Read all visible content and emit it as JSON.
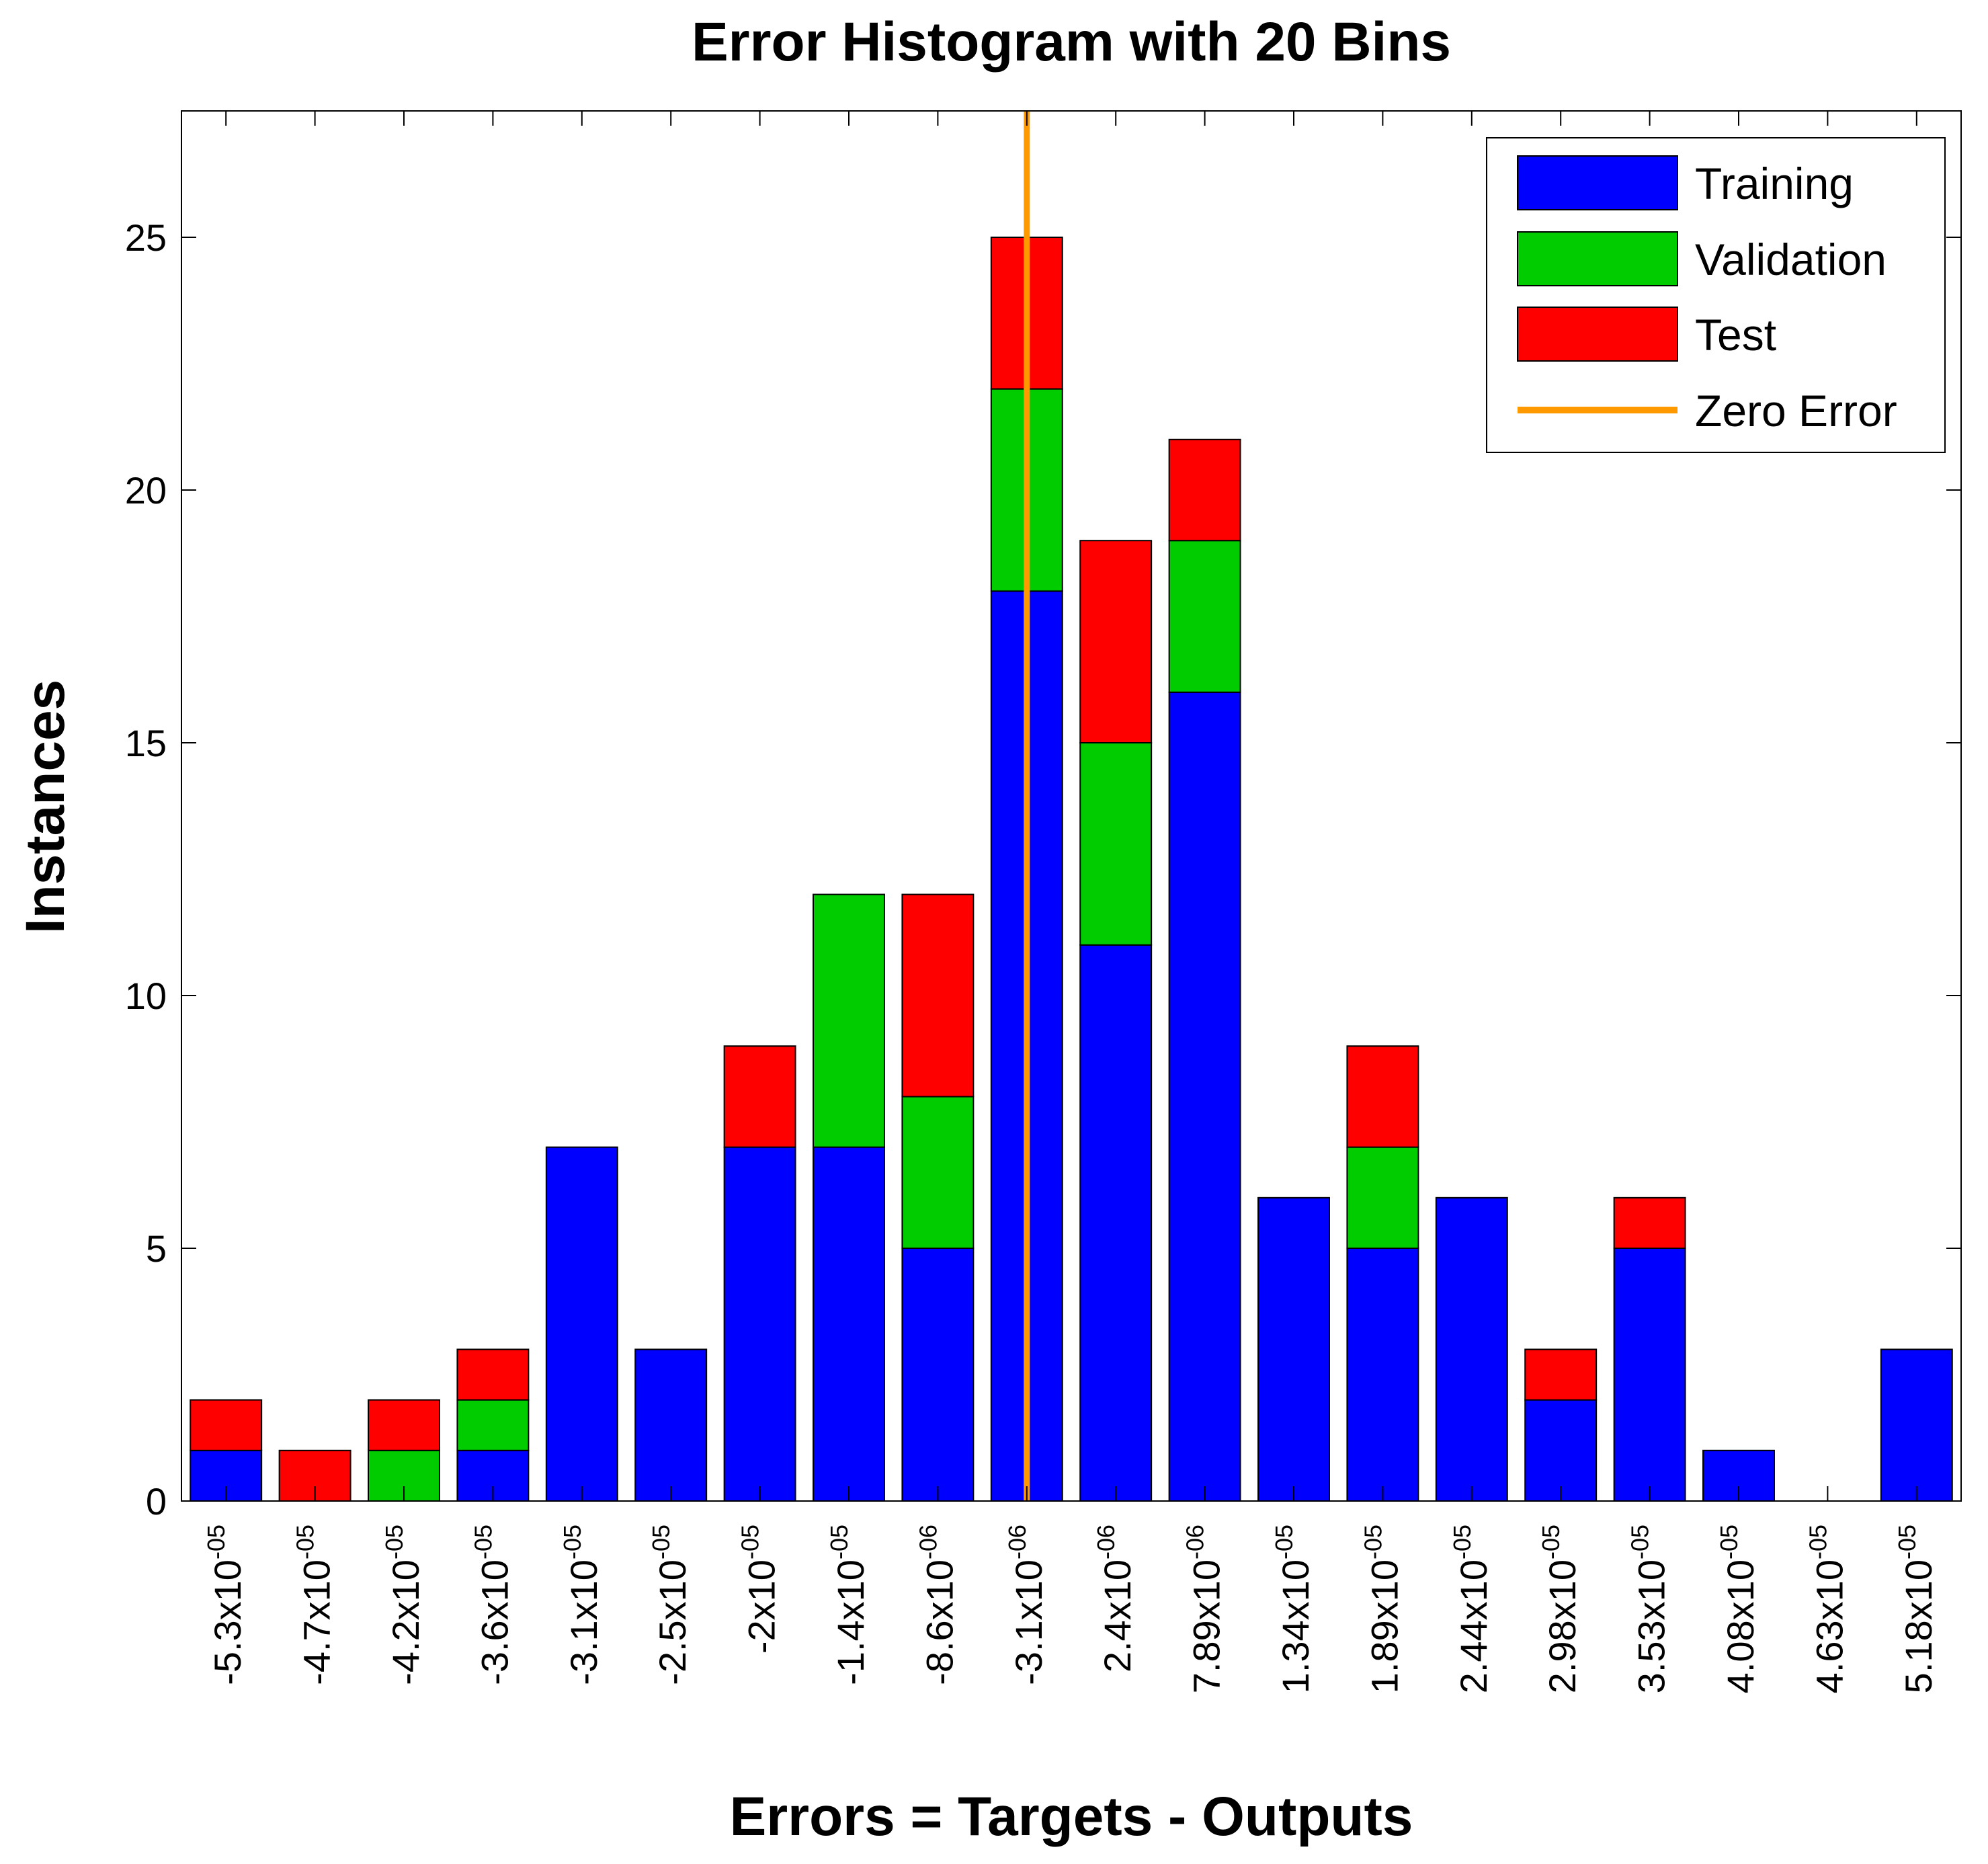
{
  "chart_data": {
    "type": "bar",
    "stacked": true,
    "title": "Error Histogram with 20 Bins",
    "xlabel": "Errors = Targets - Outputs",
    "ylabel": "Instances",
    "ylim": [
      0,
      27.5
    ],
    "yticks": [
      0,
      5,
      10,
      15,
      20,
      25
    ],
    "categories": [
      {
        "mantissa": "-5.3x10",
        "exponent": "-05"
      },
      {
        "mantissa": "-4.7x10",
        "exponent": "-05"
      },
      {
        "mantissa": "-4.2x10",
        "exponent": "-05"
      },
      {
        "mantissa": "-3.6x10",
        "exponent": "-05"
      },
      {
        "mantissa": "-3.1x10",
        "exponent": "-05"
      },
      {
        "mantissa": "-2.5x10",
        "exponent": "-05"
      },
      {
        "mantissa": "-2x10",
        "exponent": "-05"
      },
      {
        "mantissa": "-1.4x10",
        "exponent": "-05"
      },
      {
        "mantissa": "-8.6x10",
        "exponent": "-06"
      },
      {
        "mantissa": "-3.1x10",
        "exponent": "-06"
      },
      {
        "mantissa": "2.4x10",
        "exponent": "-06"
      },
      {
        "mantissa": "7.89x10",
        "exponent": "-06"
      },
      {
        "mantissa": "1.34x10",
        "exponent": "-05"
      },
      {
        "mantissa": "1.89x10",
        "exponent": "-05"
      },
      {
        "mantissa": "2.44x10",
        "exponent": "-05"
      },
      {
        "mantissa": "2.98x10",
        "exponent": "-05"
      },
      {
        "mantissa": "3.53x10",
        "exponent": "-05"
      },
      {
        "mantissa": "4.08x10",
        "exponent": "-05"
      },
      {
        "mantissa": "4.63x10",
        "exponent": "-05"
      },
      {
        "mantissa": "5.18x10",
        "exponent": "-05"
      }
    ],
    "series": [
      {
        "name": "Training",
        "color": "#0000ff",
        "values": [
          1,
          0,
          0,
          1,
          7,
          3,
          7,
          7,
          5,
          18,
          11,
          16,
          6,
          5,
          6,
          2,
          5,
          1,
          0,
          3
        ]
      },
      {
        "name": "Validation",
        "color": "#00cc00",
        "values": [
          0,
          0,
          1,
          1,
          0,
          0,
          0,
          5,
          3,
          4,
          4,
          3,
          0,
          2,
          0,
          0,
          0,
          0,
          0,
          0
        ]
      },
      {
        "name": "Test",
        "color": "#ff0000",
        "values": [
          1,
          1,
          1,
          1,
          0,
          0,
          2,
          0,
          4,
          3,
          4,
          2,
          0,
          2,
          0,
          1,
          1,
          0,
          0,
          0
        ]
      }
    ],
    "zero_error": {
      "name": "Zero Error",
      "color": "#ff9900",
      "bin_position": 9.5
    },
    "legend_position": "top-right",
    "grid": false
  }
}
